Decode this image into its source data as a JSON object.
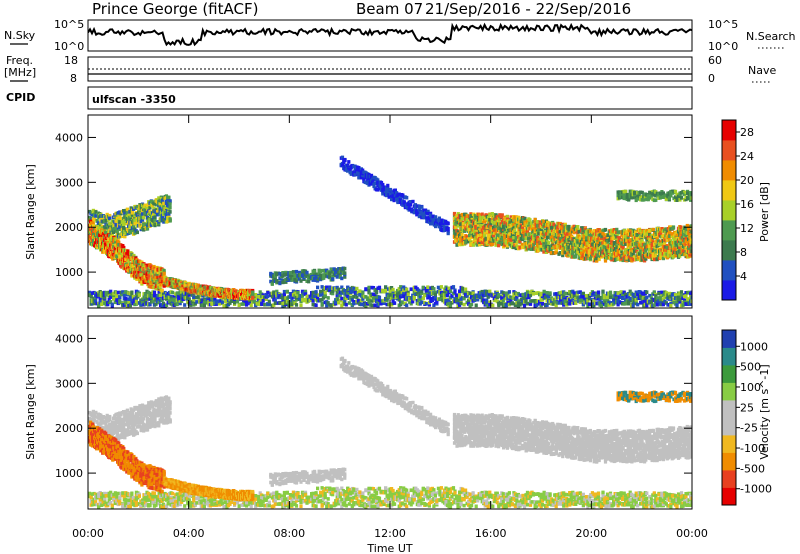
{
  "header": {
    "station": "Prince George (fitACF)",
    "beam": "Beam 07",
    "date_range": "21/Sep/2016 - 22/Sep/2016"
  },
  "top_panels": {
    "nsky_label": "N.Sky",
    "nsearch_label": "N.Search",
    "noise_ticks": [
      "10^5",
      "10^0"
    ],
    "freq_label": [
      "Freq.",
      "[MHz]"
    ],
    "freq_ticks": [
      "18",
      "8"
    ],
    "nave_label": "Nave",
    "nave_ticks": [
      "60",
      "0"
    ],
    "cpid_label": "CPID",
    "cpid_value": "ulfscan -3350"
  },
  "colors": {
    "power_scale": [
      "#1a1ae6",
      "#2050c0",
      "#3c7a4e",
      "#4e9a50",
      "#a8d028",
      "#f0c814",
      "#f08c00",
      "#e85020",
      "#e60000"
    ],
    "velocity_scale": [
      "#e60000",
      "#e84020",
      "#f08c00",
      "#f0b820",
      "#c0c0c0",
      "#c0c0c0",
      "#88cc44",
      "#3c9a3c",
      "#2a8a8a",
      "#2040b0"
    ],
    "ground_scatter": "#c0c0c0"
  },
  "chart_data": [
    {
      "type": "heatmap",
      "panel": "power",
      "xlabel": "Time UT",
      "ylabel": "Slant Range [km]",
      "x_ticks": [
        "00:00",
        "04:00",
        "08:00",
        "12:00",
        "16:00",
        "20:00",
        "00:00"
      ],
      "y_ticks": [
        1000,
        2000,
        3000,
        4000
      ],
      "xlim": [
        0,
        24
      ],
      "ylim": [
        200,
        4500
      ],
      "colorbar": {
        "label": "Power [dB]",
        "ticks": [
          4,
          8,
          12,
          16,
          20,
          24,
          28
        ],
        "range": [
          0,
          30
        ]
      },
      "features": [
        {
          "band": "upper arc early",
          "t": [
            0,
            0.5,
            1,
            1.5,
            2,
            2.5,
            3
          ],
          "range_km": [
            2100,
            2000,
            2000,
            2100,
            2200,
            2300,
            2400
          ]
        },
        {
          "band": "descending arc",
          "t": [
            0,
            1,
            2,
            3,
            4,
            5,
            6
          ],
          "range_km": [
            1900,
            1500,
            1000,
            800,
            650,
            550,
            500
          ]
        },
        {
          "band": "returning arc",
          "t": [
            14.5,
            16,
            18,
            20,
            22,
            24
          ],
          "range_km": [
            1950,
            1950,
            1800,
            1600,
            1600,
            1700
          ]
        }
      ]
    },
    {
      "type": "heatmap",
      "panel": "velocity",
      "xlabel": "Time UT",
      "ylabel": "Slant Range [km]",
      "x_ticks": [
        "00:00",
        "04:00",
        "08:00",
        "12:00",
        "16:00",
        "20:00",
        "00:00"
      ],
      "y_ticks": [
        1000,
        2000,
        3000,
        4000
      ],
      "xlim": [
        0,
        24
      ],
      "ylim": [
        200,
        4500
      ],
      "colorbar": {
        "label": "Velocity [m s^-1]",
        "ticks": [
          1000,
          500,
          100,
          25,
          -25,
          -100,
          -500,
          -1000
        ]
      }
    }
  ]
}
